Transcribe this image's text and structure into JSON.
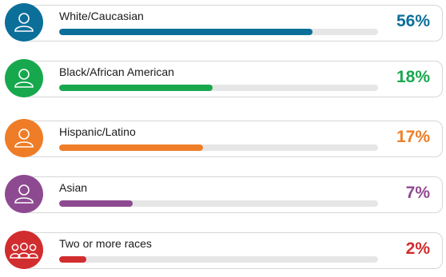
{
  "chart_data": {
    "type": "bar",
    "orientation": "horizontal",
    "categories": [
      "White/Caucasian",
      "Black/African American",
      "Hispanic/Latino",
      "Asian",
      "Two or more races"
    ],
    "values": [
      56,
      18,
      17,
      7,
      2
    ],
    "value_labels": [
      "56%",
      "18%",
      "17%",
      "7%",
      "2%"
    ],
    "bar_fraction_of_track": [
      0.795,
      0.48,
      0.45,
      0.23,
      0.085
    ],
    "colors": [
      "#0c6f9a",
      "#17a84e",
      "#ef7d27",
      "#8e4a91",
      "#d12d2f"
    ],
    "icons": [
      "person-icon",
      "person-icon",
      "person-icon",
      "person-icon",
      "group-icon"
    ],
    "track_color": "#e6e6e6"
  }
}
